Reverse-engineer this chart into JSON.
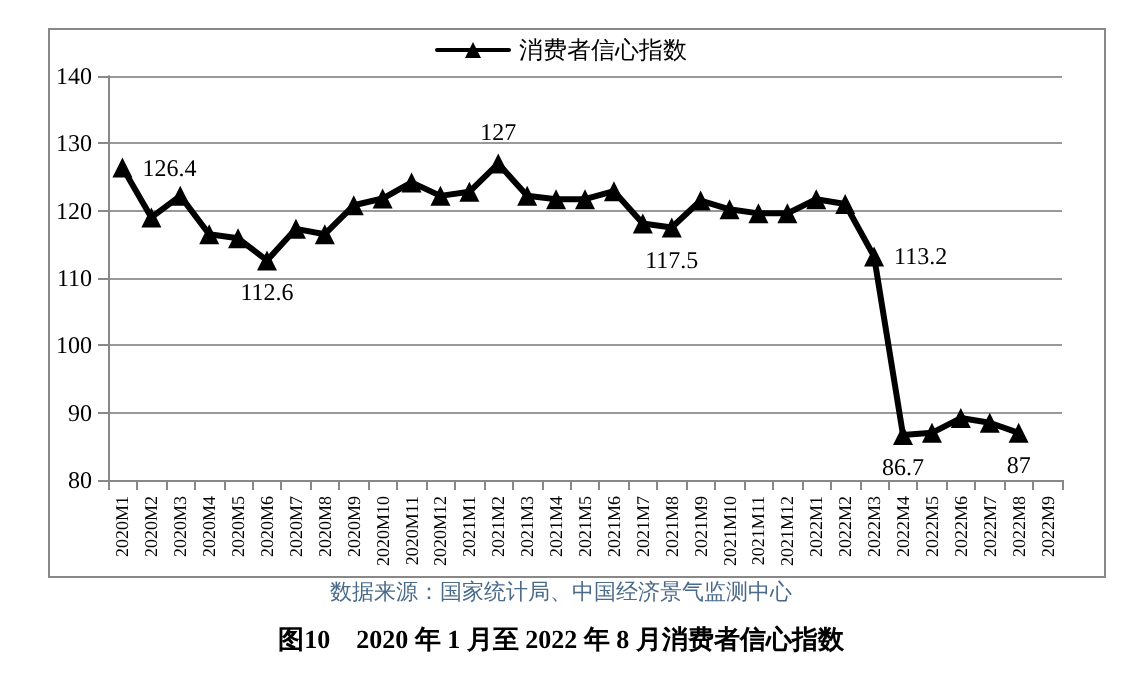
{
  "chart_data": {
    "type": "line",
    "title": "图10　2020 年 1 月至 2022 年 8 月消费者信心指数",
    "annotations": [
      "数据来源：国家统计局、中国经济景气监测中心"
    ],
    "categories": [
      "2020M1",
      "2020M2",
      "2020M3",
      "2020M4",
      "2020M5",
      "2020M6",
      "2020M7",
      "2020M8",
      "2020M9",
      "2020M10",
      "2020M11",
      "2020M12",
      "2021M1",
      "2021M2",
      "2021M3",
      "2021M4",
      "2021M5",
      "2021M6",
      "2021M7",
      "2021M8",
      "2021M9",
      "2021M10",
      "2021M11",
      "2021M12",
      "2022M1",
      "2022M2",
      "2022M3",
      "2022M4",
      "2022M5",
      "2022M6",
      "2022M7",
      "2022M8",
      "2022M9"
    ],
    "series": [
      {
        "name": "消费者信心指数",
        "color": "#000000",
        "values": [
          126.4,
          119.0,
          122.2,
          116.5,
          115.9,
          112.6,
          117.3,
          116.5,
          120.8,
          121.8,
          124.2,
          122.2,
          122.8,
          127,
          122.2,
          121.7,
          121.7,
          122.9,
          118.1,
          117.5,
          121.5,
          120.2,
          119.6,
          119.6,
          121.7,
          121.0,
          113.2,
          86.7,
          87.0,
          89.2,
          88.5,
          87,
          null
        ],
        "value_labels": [
          "126.4",
          null,
          null,
          null,
          null,
          "112.6",
          null,
          null,
          null,
          null,
          null,
          null,
          null,
          "127",
          null,
          null,
          null,
          null,
          null,
          "117.5",
          null,
          null,
          null,
          null,
          null,
          null,
          "113.2",
          "86.7",
          null,
          null,
          null,
          "87",
          null
        ]
      }
    ],
    "ylim": [
      80,
      140
    ],
    "yticks": [
      80,
      90,
      100,
      110,
      120,
      130,
      140
    ],
    "grid": "y",
    "legend": "top",
    "marker": "triangle",
    "line_style": "solid"
  }
}
